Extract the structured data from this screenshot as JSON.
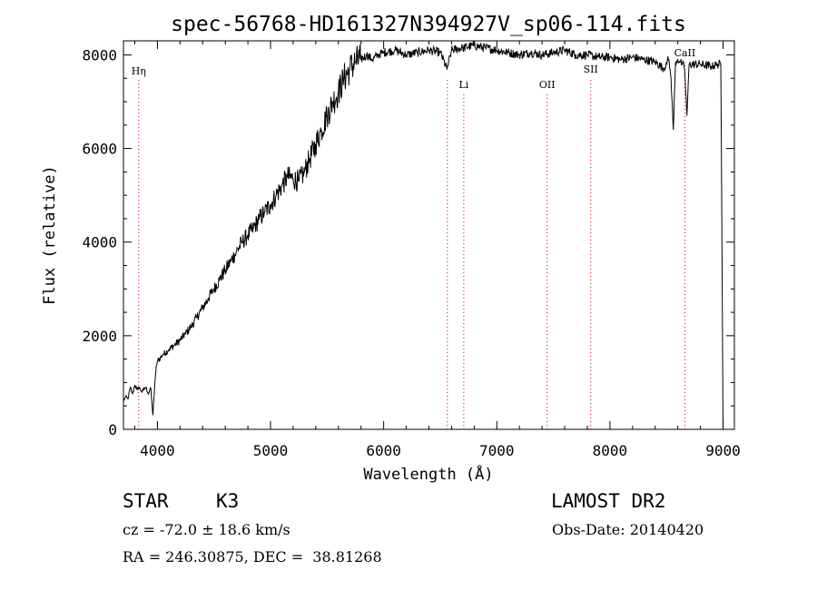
{
  "chart_data": {
    "type": "line",
    "title": "spec-56768-HD161327N394927V_sp06-114.fits",
    "xlabel": "Wavelength (Å)",
    "ylabel": "Flux (relative)",
    "xlim": [
      3700,
      9100
    ],
    "ylim": [
      0,
      8300
    ],
    "xticks": [
      4000,
      5000,
      6000,
      7000,
      8000,
      9000
    ],
    "yticks": [
      0,
      2000,
      4000,
      6000,
      8000
    ],
    "grid": false,
    "legend": "none",
    "line_color": "#000000",
    "marker_color": "#cc0000",
    "series": [
      {
        "x": [
          3700,
          3720,
          3740,
          3760,
          3780,
          3800,
          3820,
          3840,
          3860,
          3880,
          3900,
          3920,
          3940,
          3960,
          3970,
          3990,
          4000,
          4050,
          4100,
          4150,
          4200,
          4250,
          4300,
          4350,
          4400,
          4450,
          4500,
          4550,
          4600,
          4650,
          4700,
          4750,
          4800,
          4850,
          4900,
          4950,
          5000,
          5050,
          5100,
          5150,
          5200,
          5250,
          5300,
          5350,
          5400,
          5450,
          5500,
          5550,
          5600,
          5650,
          5700,
          5750,
          5800,
          5850,
          5900,
          5950,
          6000,
          6100,
          6200,
          6300,
          6400,
          6500,
          6560,
          6600,
          6700,
          6800,
          6900,
          7000,
          7100,
          7200,
          7300,
          7400,
          7500,
          7600,
          7700,
          7800,
          7900,
          8000,
          8100,
          8200,
          8300,
          8400,
          8480,
          8500,
          8520,
          8540,
          8560,
          8580,
          8600,
          8620,
          8640,
          8660,
          8680,
          8700,
          8800,
          8900,
          8950,
          8980,
          8990,
          9000
        ],
        "y": [
          600,
          700,
          650,
          900,
          750,
          950,
          850,
          900,
          800,
          850,
          900,
          750,
          900,
          300,
          700,
          1350,
          1450,
          1600,
          1700,
          1800,
          1900,
          2050,
          2200,
          2400,
          2600,
          2800,
          3000,
          3200,
          3400,
          3600,
          3800,
          4000,
          4150,
          4300,
          4500,
          4650,
          4800,
          5000,
          5200,
          5400,
          5350,
          5300,
          5500,
          5800,
          6100,
          6400,
          6700,
          7000,
          7200,
          7500,
          7700,
          7850,
          7900,
          8000,
          7900,
          8000,
          8050,
          8100,
          8000,
          8050,
          8100,
          8050,
          7700,
          8100,
          8150,
          8200,
          8150,
          8100,
          8050,
          8000,
          8050,
          8000,
          8050,
          8100,
          8000,
          8000,
          7950,
          7950,
          7900,
          7950,
          7900,
          7850,
          7700,
          7850,
          7900,
          7500,
          6400,
          7850,
          7900,
          7850,
          7800,
          7700,
          6700,
          7800,
          7800,
          7750,
          7800,
          7800,
          4000,
          0
        ]
      }
    ],
    "lines": [
      {
        "x": 3835,
        "label": "Hη"
      },
      {
        "x": 6563,
        "label": ""
      },
      {
        "x": 6708,
        "label": "Li"
      },
      {
        "x": 7445,
        "label": "OII"
      },
      {
        "x": 7830,
        "label": "SII"
      },
      {
        "x": 8662,
        "label": "CaII"
      }
    ]
  },
  "info": {
    "object_type": "STAR",
    "subclass": "K3",
    "survey": "LAMOST DR2",
    "redshift": "cz = -72.0 ± 18.6 km/s",
    "obs_date": "Obs-Date: 20140420",
    "coords": "RA = 246.30875, DEC =  38.81268"
  }
}
